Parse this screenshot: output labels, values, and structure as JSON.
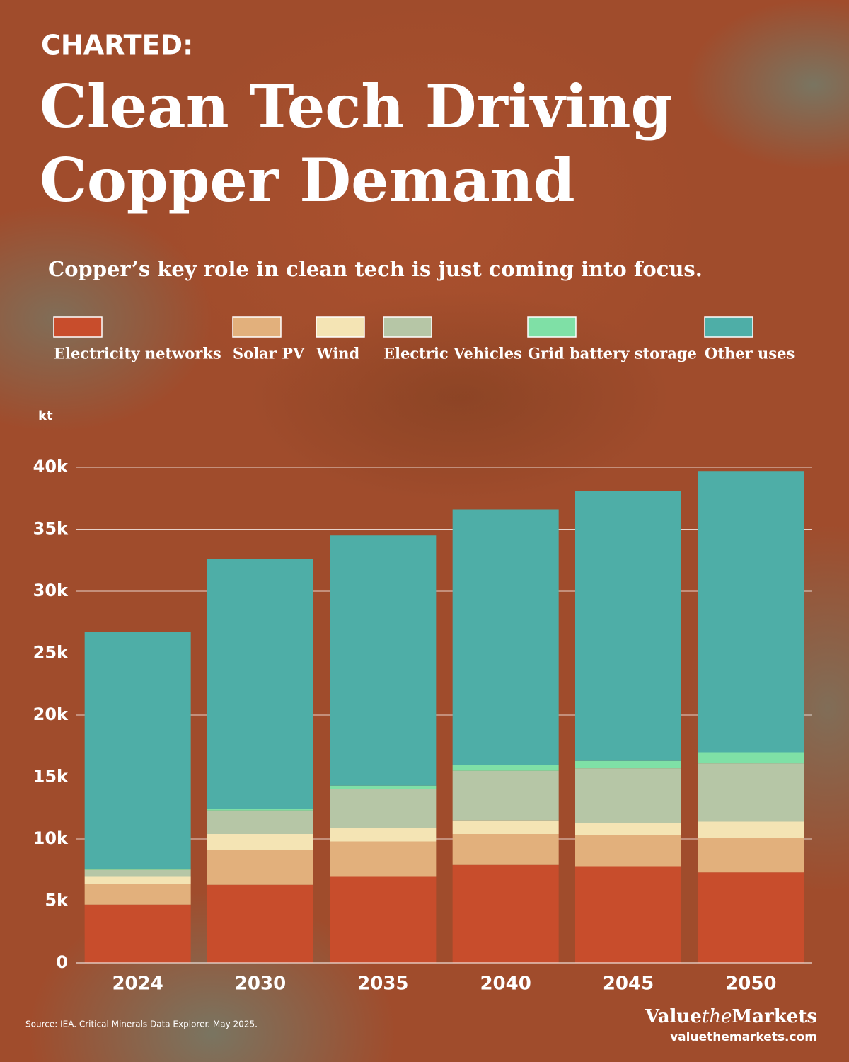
{
  "chart_data": {
    "type": "stacked_bar",
    "kicker": "CHARTED:",
    "title_lines": [
      "Clean Tech Driving",
      "Copper Demand"
    ],
    "subtitle": "Copper’s key role in clean tech is just coming into focus.",
    "y_unit": "kt",
    "categories": [
      "2024",
      "2030",
      "2035",
      "2040",
      "2045",
      "2050"
    ],
    "series": [
      {
        "name": "Electricity networks",
        "color": "#c84d2c",
        "values": [
          4700,
          6300,
          7000,
          7900,
          7800,
          7300
        ]
      },
      {
        "name": "Solar PV",
        "color": "#e2b07c",
        "values": [
          1700,
          2800,
          2800,
          2500,
          2500,
          2800
        ]
      },
      {
        "name": "Wind",
        "color": "#f4e4b4",
        "values": [
          600,
          1300,
          1100,
          1100,
          1000,
          1300
        ]
      },
      {
        "name": "Electric Vehicles",
        "color": "#b6c6a6",
        "values": [
          500,
          1900,
          3100,
          4000,
          4400,
          4700
        ]
      },
      {
        "name": "Grid battery storage",
        "color": "#7fe0a6",
        "values": [
          100,
          100,
          300,
          500,
          600,
          900
        ]
      },
      {
        "name": "Other uses",
        "color": "#4eaea7",
        "values": [
          19100,
          20200,
          20200,
          20600,
          21800,
          22700
        ]
      }
    ],
    "ylim": [
      0,
      40000
    ],
    "yticks": [
      0,
      {
        "value": 5000,
        "label": "5k"
      },
      {
        "value": 10000,
        "label": "10k"
      },
      {
        "value": 15000,
        "label": "15k"
      },
      {
        "value": 20000,
        "label": "20k"
      },
      {
        "value": 25000,
        "label": "25k"
      },
      {
        "value": 30000,
        "label": "30k"
      },
      {
        "value": 35000,
        "label": "35k"
      },
      {
        "value": 40000,
        "label": "40k"
      }
    ],
    "grid": true,
    "source": "Source: IEA. Critical Minerals Data Explorer. May 2025.",
    "brand_parts": [
      "Value",
      "the",
      "Markets"
    ],
    "website": "valuethemarkets.com"
  }
}
